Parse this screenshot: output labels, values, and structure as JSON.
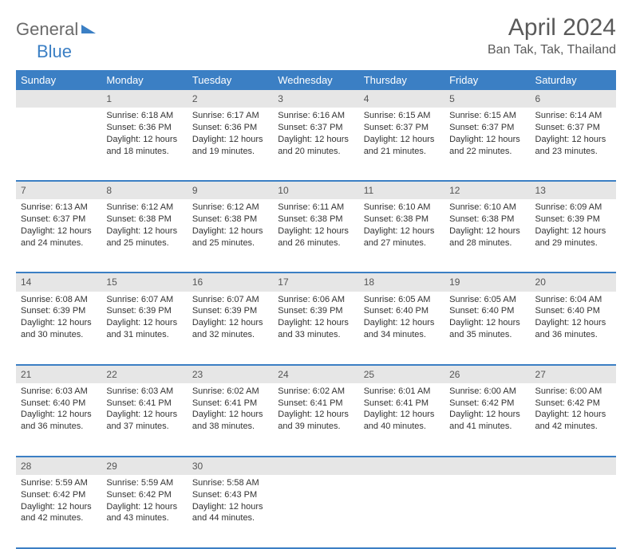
{
  "logo": {
    "part1": "General",
    "part2": "Blue"
  },
  "title": "April 2024",
  "location": "Ban Tak, Tak, Thailand",
  "colors": {
    "accent": "#3b7fc4",
    "header_text": "#ffffff",
    "daynum_bg": "#e6e6e6",
    "body_text": "#333333",
    "title_text": "#5a5a5a",
    "logo_gray": "#6a6a6a"
  },
  "weekdays": [
    "Sunday",
    "Monday",
    "Tuesday",
    "Wednesday",
    "Thursday",
    "Friday",
    "Saturday"
  ],
  "weeks": [
    [
      null,
      {
        "n": "1",
        "sr": "Sunrise: 6:18 AM",
        "ss": "Sunset: 6:36 PM",
        "d1": "Daylight: 12 hours",
        "d2": "and 18 minutes."
      },
      {
        "n": "2",
        "sr": "Sunrise: 6:17 AM",
        "ss": "Sunset: 6:36 PM",
        "d1": "Daylight: 12 hours",
        "d2": "and 19 minutes."
      },
      {
        "n": "3",
        "sr": "Sunrise: 6:16 AM",
        "ss": "Sunset: 6:37 PM",
        "d1": "Daylight: 12 hours",
        "d2": "and 20 minutes."
      },
      {
        "n": "4",
        "sr": "Sunrise: 6:15 AM",
        "ss": "Sunset: 6:37 PM",
        "d1": "Daylight: 12 hours",
        "d2": "and 21 minutes."
      },
      {
        "n": "5",
        "sr": "Sunrise: 6:15 AM",
        "ss": "Sunset: 6:37 PM",
        "d1": "Daylight: 12 hours",
        "d2": "and 22 minutes."
      },
      {
        "n": "6",
        "sr": "Sunrise: 6:14 AM",
        "ss": "Sunset: 6:37 PM",
        "d1": "Daylight: 12 hours",
        "d2": "and 23 minutes."
      }
    ],
    [
      {
        "n": "7",
        "sr": "Sunrise: 6:13 AM",
        "ss": "Sunset: 6:37 PM",
        "d1": "Daylight: 12 hours",
        "d2": "and 24 minutes."
      },
      {
        "n": "8",
        "sr": "Sunrise: 6:12 AM",
        "ss": "Sunset: 6:38 PM",
        "d1": "Daylight: 12 hours",
        "d2": "and 25 minutes."
      },
      {
        "n": "9",
        "sr": "Sunrise: 6:12 AM",
        "ss": "Sunset: 6:38 PM",
        "d1": "Daylight: 12 hours",
        "d2": "and 25 minutes."
      },
      {
        "n": "10",
        "sr": "Sunrise: 6:11 AM",
        "ss": "Sunset: 6:38 PM",
        "d1": "Daylight: 12 hours",
        "d2": "and 26 minutes."
      },
      {
        "n": "11",
        "sr": "Sunrise: 6:10 AM",
        "ss": "Sunset: 6:38 PM",
        "d1": "Daylight: 12 hours",
        "d2": "and 27 minutes."
      },
      {
        "n": "12",
        "sr": "Sunrise: 6:10 AM",
        "ss": "Sunset: 6:38 PM",
        "d1": "Daylight: 12 hours",
        "d2": "and 28 minutes."
      },
      {
        "n": "13",
        "sr": "Sunrise: 6:09 AM",
        "ss": "Sunset: 6:39 PM",
        "d1": "Daylight: 12 hours",
        "d2": "and 29 minutes."
      }
    ],
    [
      {
        "n": "14",
        "sr": "Sunrise: 6:08 AM",
        "ss": "Sunset: 6:39 PM",
        "d1": "Daylight: 12 hours",
        "d2": "and 30 minutes."
      },
      {
        "n": "15",
        "sr": "Sunrise: 6:07 AM",
        "ss": "Sunset: 6:39 PM",
        "d1": "Daylight: 12 hours",
        "d2": "and 31 minutes."
      },
      {
        "n": "16",
        "sr": "Sunrise: 6:07 AM",
        "ss": "Sunset: 6:39 PM",
        "d1": "Daylight: 12 hours",
        "d2": "and 32 minutes."
      },
      {
        "n": "17",
        "sr": "Sunrise: 6:06 AM",
        "ss": "Sunset: 6:39 PM",
        "d1": "Daylight: 12 hours",
        "d2": "and 33 minutes."
      },
      {
        "n": "18",
        "sr": "Sunrise: 6:05 AM",
        "ss": "Sunset: 6:40 PM",
        "d1": "Daylight: 12 hours",
        "d2": "and 34 minutes."
      },
      {
        "n": "19",
        "sr": "Sunrise: 6:05 AM",
        "ss": "Sunset: 6:40 PM",
        "d1": "Daylight: 12 hours",
        "d2": "and 35 minutes."
      },
      {
        "n": "20",
        "sr": "Sunrise: 6:04 AM",
        "ss": "Sunset: 6:40 PM",
        "d1": "Daylight: 12 hours",
        "d2": "and 36 minutes."
      }
    ],
    [
      {
        "n": "21",
        "sr": "Sunrise: 6:03 AM",
        "ss": "Sunset: 6:40 PM",
        "d1": "Daylight: 12 hours",
        "d2": "and 36 minutes."
      },
      {
        "n": "22",
        "sr": "Sunrise: 6:03 AM",
        "ss": "Sunset: 6:41 PM",
        "d1": "Daylight: 12 hours",
        "d2": "and 37 minutes."
      },
      {
        "n": "23",
        "sr": "Sunrise: 6:02 AM",
        "ss": "Sunset: 6:41 PM",
        "d1": "Daylight: 12 hours",
        "d2": "and 38 minutes."
      },
      {
        "n": "24",
        "sr": "Sunrise: 6:02 AM",
        "ss": "Sunset: 6:41 PM",
        "d1": "Daylight: 12 hours",
        "d2": "and 39 minutes."
      },
      {
        "n": "25",
        "sr": "Sunrise: 6:01 AM",
        "ss": "Sunset: 6:41 PM",
        "d1": "Daylight: 12 hours",
        "d2": "and 40 minutes."
      },
      {
        "n": "26",
        "sr": "Sunrise: 6:00 AM",
        "ss": "Sunset: 6:42 PM",
        "d1": "Daylight: 12 hours",
        "d2": "and 41 minutes."
      },
      {
        "n": "27",
        "sr": "Sunrise: 6:00 AM",
        "ss": "Sunset: 6:42 PM",
        "d1": "Daylight: 12 hours",
        "d2": "and 42 minutes."
      }
    ],
    [
      {
        "n": "28",
        "sr": "Sunrise: 5:59 AM",
        "ss": "Sunset: 6:42 PM",
        "d1": "Daylight: 12 hours",
        "d2": "and 42 minutes."
      },
      {
        "n": "29",
        "sr": "Sunrise: 5:59 AM",
        "ss": "Sunset: 6:42 PM",
        "d1": "Daylight: 12 hours",
        "d2": "and 43 minutes."
      },
      {
        "n": "30",
        "sr": "Sunrise: 5:58 AM",
        "ss": "Sunset: 6:43 PM",
        "d1": "Daylight: 12 hours",
        "d2": "and 44 minutes."
      },
      null,
      null,
      null,
      null
    ]
  ]
}
